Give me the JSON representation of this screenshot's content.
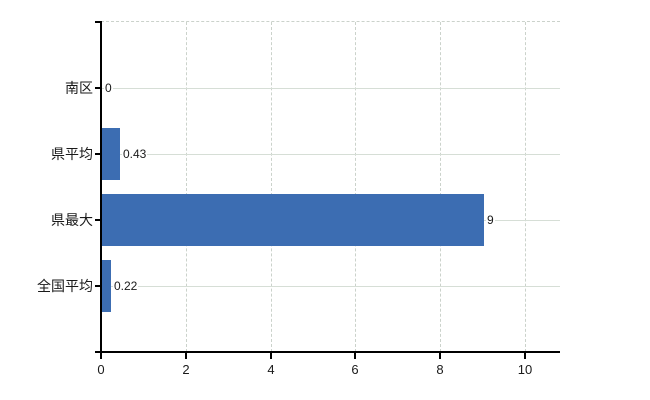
{
  "chart_data": {
    "type": "bar",
    "orientation": "horizontal",
    "title": "",
    "categories": [
      "南区",
      "県平均",
      "県最大",
      "全国平均"
    ],
    "values": [
      0,
      0.43,
      9,
      0.22
    ],
    "value_labels": [
      "0",
      "0.43",
      "9",
      "0.22"
    ],
    "x_ticks": [
      0,
      2,
      4,
      6,
      8,
      10
    ],
    "x_tick_labels": [
      "0",
      "2",
      "4",
      "6",
      "8",
      "10"
    ],
    "xlim": [
      0,
      10.8
    ],
    "ylabel": "",
    "xlabel": "",
    "grid": "on",
    "legend": "none",
    "colors": {
      "bar": "#3c6db2",
      "axis": "#000000",
      "h_gridline": "#d6ded6",
      "v_gridline": "#cbd2cb",
      "text": "#1a1a1a",
      "background": "#ffffff"
    }
  }
}
